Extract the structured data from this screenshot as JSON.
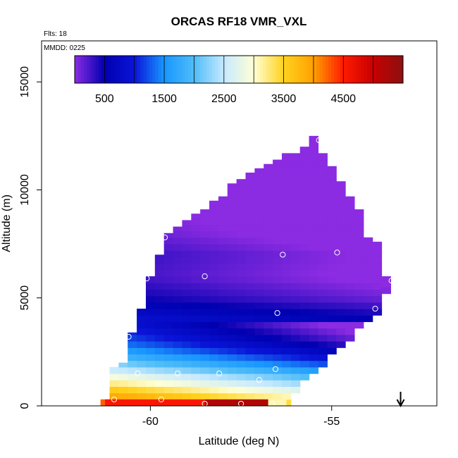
{
  "chart_data": {
    "type": "heatmap",
    "title": "ORCAS RF18 VMR_VXL",
    "flights_label": "Flts: 18",
    "date_label": "MMDD: 0225",
    "xlabel": "Latitude (deg N)",
    "ylabel": "Altitude (m)",
    "xlim": [
      -63.0,
      -52.1
    ],
    "ylim": [
      0,
      16900
    ],
    "x_ticks": [
      -60,
      -55
    ],
    "y_ticks": [
      0,
      5000,
      10000,
      15000
    ],
    "grid": false,
    "colorbar": {
      "placement": "top-inside",
      "range": [
        0,
        5500
      ],
      "tick_values": [
        500,
        1500,
        2500,
        3500,
        4500
      ],
      "tick_labels": [
        "500",
        "1500",
        "2500",
        "3500",
        "4500"
      ],
      "bin_edges": [
        0,
        500,
        1000,
        1500,
        2000,
        2500,
        3000,
        3500,
        4000,
        4500,
        5000,
        5500
      ],
      "stops": [
        {
          "value": 0,
          "color": "#8b2be2"
        },
        {
          "value": 500,
          "color": "#0000b0"
        },
        {
          "value": 1000,
          "color": "#0a14d8"
        },
        {
          "value": 1500,
          "color": "#1896ff"
        },
        {
          "value": 2000,
          "color": "#4fbdf8"
        },
        {
          "value": 2500,
          "color": "#c6e9ff"
        },
        {
          "value": 3000,
          "color": "#ffffd6"
        },
        {
          "value": 3500,
          "color": "#ffd21e"
        },
        {
          "value": 4000,
          "color": "#ffa000"
        },
        {
          "value": 4500,
          "color": "#ff1a00"
        },
        {
          "value": 5000,
          "color": "#c80000"
        },
        {
          "value": 5500,
          "color": "#8c1010"
        }
      ]
    },
    "grid_cells": {
      "lat_step": 0.25,
      "alt_step": 300,
      "columns": [
        {
          "lat": -61.25,
          "bottom": 0,
          "top": 300
        },
        {
          "lat": -61.0,
          "bottom": 0,
          "top": 1800
        },
        {
          "lat": -60.75,
          "bottom": 0,
          "top": 2000
        },
        {
          "lat": -60.5,
          "bottom": 0,
          "top": 3400
        },
        {
          "lat": -60.25,
          "bottom": 0,
          "top": 4500
        },
        {
          "lat": -60.0,
          "bottom": 0,
          "top": 6000
        },
        {
          "lat": -59.75,
          "bottom": 0,
          "top": 7000
        },
        {
          "lat": -59.5,
          "bottom": 0,
          "top": 8000
        },
        {
          "lat": -59.25,
          "bottom": 0,
          "top": 8300
        },
        {
          "lat": -59.0,
          "bottom": 0,
          "top": 8600
        },
        {
          "lat": -58.75,
          "bottom": 0,
          "top": 8900
        },
        {
          "lat": -58.5,
          "bottom": 0,
          "top": 9100
        },
        {
          "lat": -58.25,
          "bottom": 0,
          "top": 9500
        },
        {
          "lat": -58.0,
          "bottom": 0,
          "top": 9700
        },
        {
          "lat": -57.75,
          "bottom": 0,
          "top": 10300
        },
        {
          "lat": -57.5,
          "bottom": 0,
          "top": 10500
        },
        {
          "lat": -57.25,
          "bottom": 0,
          "top": 10800
        },
        {
          "lat": -57.0,
          "bottom": 0,
          "top": 11000
        },
        {
          "lat": -56.75,
          "bottom": 0,
          "top": 11200
        },
        {
          "lat": -56.5,
          "bottom": 0,
          "top": 11400
        },
        {
          "lat": -56.25,
          "bottom": 0,
          "top": 11700
        },
        {
          "lat": -56.0,
          "bottom": 600,
          "top": 11700
        },
        {
          "lat": -55.75,
          "bottom": 1200,
          "top": 12000
        },
        {
          "lat": -55.5,
          "bottom": 1500,
          "top": 12500
        },
        {
          "lat": -55.25,
          "bottom": 1800,
          "top": 11700
        },
        {
          "lat": -55.0,
          "bottom": 2400,
          "top": 11100
        },
        {
          "lat": -54.75,
          "bottom": 2700,
          "top": 10400
        },
        {
          "lat": -54.5,
          "bottom": 3000,
          "top": 9700
        },
        {
          "lat": -54.25,
          "bottom": 3600,
          "top": 9100
        },
        {
          "lat": -54.0,
          "bottom": 3900,
          "top": 7800
        },
        {
          "lat": -53.75,
          "bottom": 4200,
          "top": 7600
        },
        {
          "lat": -53.5,
          "bottom": 5200,
          "top": 6000
        }
      ],
      "surface_strip": [
        {
          "lat_from": -61.25,
          "lat_to": -58.5,
          "value": 4550
        },
        {
          "lat_from": -58.5,
          "lat_to": -56.75,
          "value": 5200
        },
        {
          "lat_from": -56.75,
          "lat_to": -56.25,
          "value": 3100
        }
      ],
      "vertical_profile": [
        {
          "alt": 0,
          "value": 4400
        },
        {
          "alt": 600,
          "value": 3800
        },
        {
          "alt": 1000,
          "value": 3300
        },
        {
          "alt": 1400,
          "value": 2900
        },
        {
          "alt": 1800,
          "value": 2400
        },
        {
          "alt": 2400,
          "value": 1800
        },
        {
          "alt": 3000,
          "value": 1350
        },
        {
          "alt": 3800,
          "value": 1000
        },
        {
          "alt": 4400,
          "value": 750
        },
        {
          "alt": 5000,
          "value": 500
        },
        {
          "alt": 6000,
          "value": 300
        },
        {
          "alt": 7000,
          "value": 350
        },
        {
          "alt": 8000,
          "value": 180
        },
        {
          "alt": 9000,
          "value": 100
        },
        {
          "alt": 12500,
          "value": 50
        }
      ],
      "horizontal_gradient_per_deg": 170
    },
    "sample_points": [
      {
        "lat": -55.35,
        "alt": 12300
      },
      {
        "lat": -53.9,
        "alt": 8800
      },
      {
        "lat": -59.6,
        "alt": 7800
      },
      {
        "lat": -56.35,
        "alt": 7000
      },
      {
        "lat": -54.85,
        "alt": 7100
      },
      {
        "lat": -58.5,
        "alt": 6000
      },
      {
        "lat": -60.1,
        "alt": 5900
      },
      {
        "lat": -53.35,
        "alt": 5800
      },
      {
        "lat": -56.5,
        "alt": 4300
      },
      {
        "lat": -53.8,
        "alt": 4500
      },
      {
        "lat": -60.6,
        "alt": 3200
      },
      {
        "lat": -56.55,
        "alt": 1700
      },
      {
        "lat": -58.1,
        "alt": 1500
      },
      {
        "lat": -59.25,
        "alt": 1500
      },
      {
        "lat": -60.35,
        "alt": 1500
      },
      {
        "lat": -57.0,
        "alt": 1200
      },
      {
        "lat": -61.0,
        "alt": 300
      },
      {
        "lat": -59.7,
        "alt": 300
      },
      {
        "lat": -58.5,
        "alt": 100
      },
      {
        "lat": -57.5,
        "alt": 100
      },
      {
        "lat": -56.65,
        "alt": 100
      }
    ],
    "marker_arrow": {
      "lat": -53.1,
      "direction": "down"
    }
  }
}
